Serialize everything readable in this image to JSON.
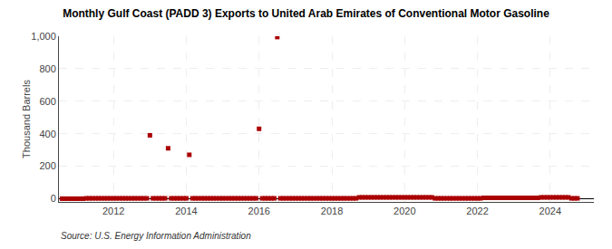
{
  "chart_data": {
    "type": "scatter",
    "title": "Monthly Gulf Coast (PADD 3) Exports to United Arab Emirates of Conventional Motor Gasoline",
    "ylabel": "Thousand Barrels",
    "annotations": [
      "Source: U.S. Energy Information Administration"
    ],
    "x": [
      2010.583,
      2010.667,
      2010.75,
      2010.833,
      2010.917,
      2011.0,
      2011.083,
      2011.167,
      2011.25,
      2011.333,
      2011.417,
      2011.5,
      2011.583,
      2011.667,
      2011.75,
      2011.833,
      2011.917,
      2012.0,
      2012.083,
      2012.167,
      2012.25,
      2012.333,
      2012.417,
      2012.5,
      2012.583,
      2012.667,
      2012.75,
      2012.833,
      2012.917,
      2013.0,
      2013.083,
      2013.167,
      2013.25,
      2013.333,
      2013.417,
      2013.5,
      2013.583,
      2013.667,
      2013.75,
      2013.833,
      2013.917,
      2014.0,
      2014.083,
      2014.167,
      2014.25,
      2014.333,
      2014.417,
      2014.5,
      2014.583,
      2014.667,
      2014.75,
      2014.833,
      2014.917,
      2015.0,
      2015.083,
      2015.167,
      2015.25,
      2015.333,
      2015.417,
      2015.5,
      2015.583,
      2015.667,
      2015.75,
      2015.833,
      2015.917,
      2016.0,
      2016.083,
      2016.167,
      2016.25,
      2016.333,
      2016.417,
      2016.5,
      2016.583,
      2016.667,
      2016.75,
      2016.833,
      2016.917,
      2017.0,
      2017.083,
      2017.167,
      2017.25,
      2017.333,
      2017.417,
      2017.5,
      2017.583,
      2017.667,
      2017.75,
      2017.833,
      2017.917,
      2018.0,
      2018.083,
      2018.167,
      2018.25,
      2018.333,
      2018.417,
      2018.5,
      2018.583,
      2018.667,
      2018.75,
      2018.833,
      2018.917,
      2019.0,
      2019.083,
      2019.167,
      2019.25,
      2019.333,
      2019.417,
      2019.5,
      2019.583,
      2019.667,
      2019.75,
      2019.833,
      2019.917,
      2020.0,
      2020.083,
      2020.167,
      2020.25,
      2020.333,
      2020.417,
      2020.5,
      2020.583,
      2020.667,
      2020.75,
      2020.833,
      2020.917,
      2021.0,
      2021.083,
      2021.167,
      2021.25,
      2021.333,
      2021.417,
      2021.5,
      2021.583,
      2021.667,
      2021.75,
      2021.833,
      2021.917,
      2022.0,
      2022.083,
      2022.167,
      2022.25,
      2022.333,
      2022.417,
      2022.5,
      2022.583,
      2022.667,
      2022.75,
      2022.833,
      2022.917,
      2023.0,
      2023.083,
      2023.167,
      2023.25,
      2023.333,
      2023.417,
      2023.5,
      2023.583,
      2023.667,
      2023.75,
      2023.833,
      2023.917,
      2024.0,
      2024.083,
      2024.167,
      2024.25,
      2024.333,
      2024.417,
      2024.5,
      2024.583,
      2024.667,
      2024.75
    ],
    "values": [
      0,
      0,
      0,
      0,
      0,
      0,
      0,
      0,
      2,
      2,
      2,
      2,
      2,
      2,
      2,
      2,
      2,
      2,
      2,
      2,
      2,
      2,
      2,
      2,
      2,
      2,
      2,
      2,
      2,
      390,
      2,
      2,
      2,
      2,
      2,
      310,
      2,
      2,
      2,
      2,
      2,
      2,
      270,
      2,
      2,
      2,
      2,
      2,
      2,
      2,
      2,
      2,
      2,
      2,
      2,
      2,
      2,
      2,
      2,
      2,
      2,
      2,
      2,
      2,
      2,
      430,
      2,
      2,
      2,
      2,
      2,
      995,
      2,
      2,
      2,
      2,
      2,
      2,
      2,
      2,
      2,
      2,
      2,
      2,
      2,
      2,
      2,
      2,
      2,
      2,
      2,
      2,
      2,
      2,
      2,
      2,
      2,
      2,
      8,
      8,
      8,
      8,
      8,
      8,
      8,
      8,
      8,
      8,
      8,
      8,
      8,
      8,
      8,
      8,
      8,
      8,
      8,
      8,
      8,
      8,
      8,
      8,
      8,
      2,
      2,
      2,
      2,
      2,
      2,
      2,
      2,
      2,
      2,
      2,
      2,
      2,
      2,
      2,
      2,
      5,
      5,
      5,
      5,
      5,
      5,
      5,
      5,
      5,
      5,
      5,
      5,
      5,
      5,
      5,
      5,
      5,
      5,
      5,
      8,
      8,
      8,
      8,
      8,
      8,
      8,
      8,
      8,
      8,
      2,
      2,
      2
    ],
    "color": "#aa0000",
    "marker": "square",
    "xlim": [
      2010.5,
      2025.2
    ],
    "xticks": [
      2012,
      2014,
      2016,
      2018,
      2020,
      2022,
      2024
    ],
    "ylim": [
      -20,
      1000
    ],
    "yticks": [
      0,
      200,
      400,
      600,
      800,
      {
        "value": 1000,
        "label": "1,000"
      }
    ],
    "grid": true
  }
}
